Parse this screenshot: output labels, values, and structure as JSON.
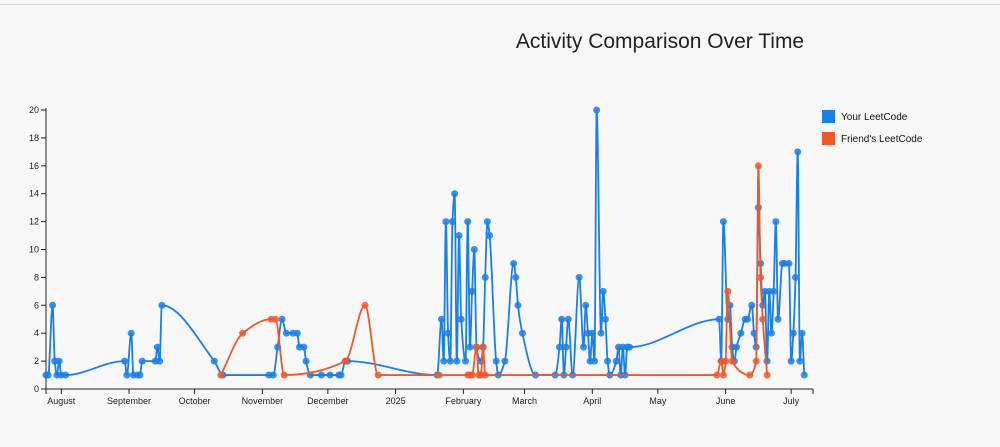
{
  "chart_data": {
    "type": "line",
    "title": "Activity Comparison Over Time",
    "xlabel": "",
    "ylabel": "",
    "ylim": [
      0,
      20
    ],
    "yticks": [
      0,
      2,
      4,
      6,
      8,
      10,
      12,
      14,
      16,
      18,
      20
    ],
    "xlim": [
      "2024-07-25",
      "2025-07-11"
    ],
    "xticks": [
      {
        "date": "2024-08-01",
        "label": "August"
      },
      {
        "date": "2024-09-01",
        "label": "September"
      },
      {
        "date": "2024-10-01",
        "label": "October"
      },
      {
        "date": "2024-11-01",
        "label": "November"
      },
      {
        "date": "2024-12-01",
        "label": "December"
      },
      {
        "date": "2025-01-01",
        "label": "2025"
      },
      {
        "date": "2025-02-01",
        "label": "February"
      },
      {
        "date": "2025-03-01",
        "label": "March"
      },
      {
        "date": "2025-04-01",
        "label": "April"
      },
      {
        "date": "2025-05-01",
        "label": "May"
      },
      {
        "date": "2025-06-01",
        "label": "June"
      },
      {
        "date": "2025-07-01",
        "label": "July"
      }
    ],
    "grid": false,
    "legend_position": "right",
    "series": [
      {
        "name": "Your LeetCode",
        "color": "#1a7fe6",
        "points": [
          [
            "2024-07-25",
            1
          ],
          [
            "2024-07-26",
            1
          ],
          [
            "2024-07-28",
            6
          ],
          [
            "2024-07-29",
            2
          ],
          [
            "2024-07-30",
            1
          ],
          [
            "2024-07-31",
            2
          ],
          [
            "2024-08-01",
            1
          ],
          [
            "2024-08-03",
            1
          ],
          [
            "2024-08-30",
            2
          ],
          [
            "2024-08-31",
            1
          ],
          [
            "2024-09-02",
            4
          ],
          [
            "2024-09-03",
            1
          ],
          [
            "2024-09-05",
            1
          ],
          [
            "2024-09-06",
            1
          ],
          [
            "2024-09-07",
            2
          ],
          [
            "2024-09-13",
            2
          ],
          [
            "2024-09-14",
            3
          ],
          [
            "2024-09-15",
            2
          ],
          [
            "2024-09-16",
            6
          ],
          [
            "2024-10-10",
            2
          ],
          [
            "2024-10-14",
            1
          ],
          [
            "2024-11-04",
            1
          ],
          [
            "2024-11-06",
            1
          ],
          [
            "2024-11-08",
            3
          ],
          [
            "2024-11-10",
            5
          ],
          [
            "2024-11-12",
            4
          ],
          [
            "2024-11-15",
            4
          ],
          [
            "2024-11-17",
            4
          ],
          [
            "2024-11-18",
            3
          ],
          [
            "2024-11-20",
            3
          ],
          [
            "2024-11-21",
            2
          ],
          [
            "2024-11-23",
            1
          ],
          [
            "2024-11-28",
            1
          ],
          [
            "2024-12-02",
            1
          ],
          [
            "2024-12-06",
            1
          ],
          [
            "2024-12-07",
            1
          ],
          [
            "2024-12-09",
            2
          ],
          [
            "2024-12-10",
            2
          ],
          [
            "2025-01-20",
            1
          ],
          [
            "2025-01-22",
            5
          ],
          [
            "2025-01-23",
            2
          ],
          [
            "2025-01-24",
            12
          ],
          [
            "2025-01-25",
            4
          ],
          [
            "2025-01-26",
            2
          ],
          [
            "2025-01-27",
            12
          ],
          [
            "2025-01-28",
            14
          ],
          [
            "2025-01-29",
            2
          ],
          [
            "2025-01-30",
            11
          ],
          [
            "2025-01-31",
            5
          ],
          [
            "2025-02-02",
            2
          ],
          [
            "2025-02-03",
            12
          ],
          [
            "2025-02-04",
            3
          ],
          [
            "2025-02-05",
            7
          ],
          [
            "2025-02-06",
            10
          ],
          [
            "2025-02-07",
            3
          ],
          [
            "2025-02-09",
            2
          ],
          [
            "2025-02-10",
            3
          ],
          [
            "2025-02-11",
            8
          ],
          [
            "2025-02-12",
            12
          ],
          [
            "2025-02-13",
            11
          ],
          [
            "2025-02-16",
            2
          ],
          [
            "2025-02-17",
            1
          ],
          [
            "2025-02-20",
            2
          ],
          [
            "2025-02-24",
            9
          ],
          [
            "2025-02-25",
            8
          ],
          [
            "2025-02-26",
            6
          ],
          [
            "2025-02-28",
            4
          ],
          [
            "2025-03-06",
            1
          ],
          [
            "2025-03-15",
            1
          ],
          [
            "2025-03-17",
            3
          ],
          [
            "2025-03-18",
            5
          ],
          [
            "2025-03-19",
            1
          ],
          [
            "2025-03-20",
            3
          ],
          [
            "2025-03-21",
            5
          ],
          [
            "2025-03-23",
            1
          ],
          [
            "2025-03-26",
            8
          ],
          [
            "2025-03-28",
            3
          ],
          [
            "2025-03-29",
            6
          ],
          [
            "2025-03-30",
            4
          ],
          [
            "2025-03-31",
            2
          ],
          [
            "2025-04-01",
            4
          ],
          [
            "2025-04-02",
            2
          ],
          [
            "2025-04-03",
            20
          ],
          [
            "2025-04-05",
            4
          ],
          [
            "2025-04-06",
            7
          ],
          [
            "2025-04-07",
            5
          ],
          [
            "2025-04-08",
            2
          ],
          [
            "2025-04-09",
            1
          ],
          [
            "2025-04-12",
            2
          ],
          [
            "2025-04-13",
            3
          ],
          [
            "2025-04-14",
            1
          ],
          [
            "2025-04-15",
            3
          ],
          [
            "2025-04-16",
            1
          ],
          [
            "2025-04-17",
            3
          ],
          [
            "2025-04-18",
            3
          ],
          [
            "2025-05-29",
            5
          ],
          [
            "2025-05-30",
            2
          ],
          [
            "2025-05-31",
            12
          ],
          [
            "2025-06-02",
            5
          ],
          [
            "2025-06-03",
            6
          ],
          [
            "2025-06-04",
            3
          ],
          [
            "2025-06-05",
            2
          ],
          [
            "2025-06-06",
            3
          ],
          [
            "2025-06-08",
            4
          ],
          [
            "2025-06-10",
            5
          ],
          [
            "2025-06-11",
            5
          ],
          [
            "2025-06-13",
            6
          ],
          [
            "2025-06-14",
            4
          ],
          [
            "2025-06-15",
            3
          ],
          [
            "2025-06-16",
            13
          ],
          [
            "2025-06-17",
            9
          ],
          [
            "2025-06-18",
            6
          ],
          [
            "2025-06-19",
            7
          ],
          [
            "2025-06-20",
            2
          ],
          [
            "2025-06-21",
            7
          ],
          [
            "2025-06-22",
            4
          ],
          [
            "2025-06-23",
            7
          ],
          [
            "2025-06-24",
            12
          ],
          [
            "2025-06-25",
            5
          ],
          [
            "2025-06-27",
            9
          ],
          [
            "2025-06-28",
            9
          ],
          [
            "2025-06-30",
            9
          ],
          [
            "2025-07-01",
            2
          ],
          [
            "2025-07-02",
            4
          ],
          [
            "2025-07-03",
            8
          ],
          [
            "2025-07-04",
            17
          ],
          [
            "2025-07-05",
            2
          ],
          [
            "2025-07-06",
            4
          ],
          [
            "2025-07-07",
            1
          ]
        ]
      },
      {
        "name": "Friend's LeetCode",
        "color": "#f0582c",
        "points": [
          [
            "2024-10-13",
            1
          ],
          [
            "2024-10-23",
            4
          ],
          [
            "2024-11-05",
            5
          ],
          [
            "2024-11-07",
            5
          ],
          [
            "2024-11-11",
            1
          ],
          [
            "2024-12-09",
            2
          ],
          [
            "2024-12-18",
            6
          ],
          [
            "2024-12-24",
            1
          ],
          [
            "2025-01-21",
            1
          ],
          [
            "2025-02-03",
            1
          ],
          [
            "2025-02-04",
            1
          ],
          [
            "2025-02-05",
            1
          ],
          [
            "2025-02-07",
            3
          ],
          [
            "2025-02-08",
            1
          ],
          [
            "2025-02-09",
            1
          ],
          [
            "2025-02-10",
            3
          ],
          [
            "2025-02-11",
            1
          ],
          [
            "2025-05-28",
            1
          ],
          [
            "2025-05-30",
            2
          ],
          [
            "2025-05-31",
            1
          ],
          [
            "2025-06-01",
            2
          ],
          [
            "2025-06-02",
            7
          ],
          [
            "2025-06-04",
            2
          ],
          [
            "2025-06-12",
            1
          ],
          [
            "2025-06-15",
            2
          ],
          [
            "2025-06-16",
            16
          ],
          [
            "2025-06-17",
            8
          ],
          [
            "2025-06-18",
            5
          ],
          [
            "2025-06-20",
            1
          ]
        ]
      }
    ]
  }
}
